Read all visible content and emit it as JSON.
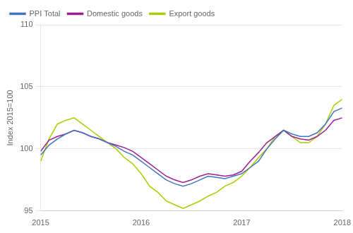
{
  "chart_data": {
    "type": "line",
    "ylabel": "Index 2015=100",
    "categories": [
      "2015",
      null,
      null,
      null,
      null,
      null,
      null,
      null,
      null,
      null,
      null,
      null,
      "2016",
      null,
      null,
      null,
      null,
      null,
      null,
      null,
      null,
      null,
      null,
      null,
      "2017",
      null,
      null,
      null,
      null,
      null,
      null,
      null,
      null,
      null,
      null,
      null,
      "2018"
    ],
    "series": [
      {
        "name": "PPI Total",
        "color": "#4472C4",
        "values": [
          99.5,
          100.3,
          100.8,
          101.2,
          101.5,
          101.3,
          101.0,
          100.8,
          100.5,
          100.2,
          99.8,
          99.5,
          99.0,
          98.5,
          98.0,
          97.5,
          97.2,
          97.0,
          97.2,
          97.5,
          97.8,
          97.7,
          97.6,
          97.8,
          98.0,
          98.5,
          99.0,
          100.0,
          100.8,
          101.5,
          101.2,
          101.0,
          101.0,
          101.3,
          102.0,
          103.0,
          103.3
        ]
      },
      {
        "name": "Domestic goods",
        "color": "#9E1F8E",
        "values": [
          99.8,
          100.7,
          101.0,
          101.2,
          101.5,
          101.3,
          101.0,
          100.8,
          100.5,
          100.3,
          100.1,
          99.8,
          99.3,
          98.8,
          98.3,
          97.8,
          97.5,
          97.3,
          97.5,
          97.8,
          98.0,
          97.9,
          97.8,
          97.9,
          98.2,
          99.0,
          99.7,
          100.5,
          101.0,
          101.5,
          101.0,
          100.8,
          100.7,
          101.0,
          101.5,
          102.3,
          102.5
        ]
      },
      {
        "name": "Export goods",
        "color": "#AACC00",
        "values": [
          99.0,
          100.8,
          102.0,
          102.3,
          102.5,
          102.0,
          101.5,
          101.0,
          100.5,
          100.0,
          99.3,
          98.8,
          98.0,
          97.0,
          96.5,
          95.8,
          95.5,
          95.2,
          95.5,
          95.8,
          96.2,
          96.5,
          97.0,
          97.3,
          97.8,
          98.5,
          99.3,
          100.0,
          101.0,
          101.5,
          101.0,
          100.5,
          100.5,
          101.0,
          102.0,
          103.5,
          104.0
        ]
      }
    ],
    "ylim": [
      95,
      110
    ],
    "yticks": [
      95,
      100,
      105,
      110
    ],
    "grid": "y",
    "legend": "upper left"
  }
}
